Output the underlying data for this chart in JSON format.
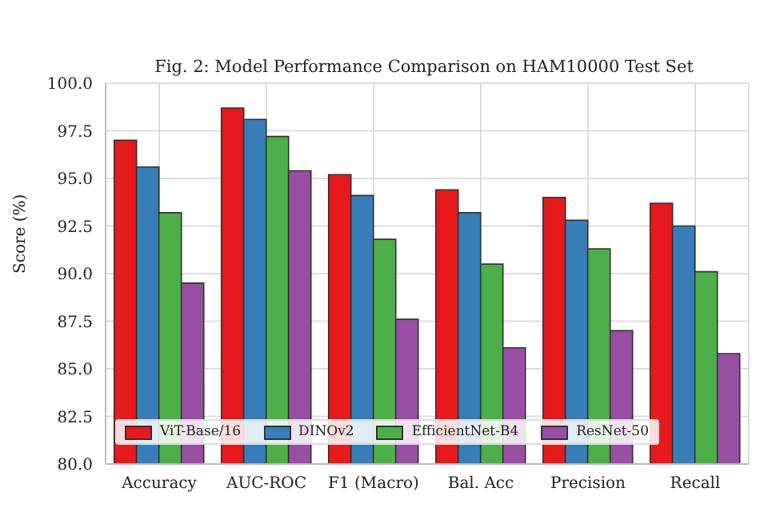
{
  "chart_data": {
    "type": "bar",
    "title": "Fig. 2: Model Performance Comparison on HAM10000 Test Set",
    "ylabel": "Score (%)",
    "categories": [
      "Accuracy",
      "AUC-ROC",
      "F1 (Macro)",
      "Bal. Acc",
      "Precision",
      "Recall"
    ],
    "series": [
      {
        "name": "ViT-Base/16",
        "color": "#e41a1c",
        "values": [
          97.0,
          98.7,
          95.2,
          94.4,
          94.0,
          93.7
        ]
      },
      {
        "name": "DINOv2",
        "color": "#377eb8",
        "values": [
          95.6,
          98.1,
          94.1,
          93.2,
          92.8,
          92.5
        ]
      },
      {
        "name": "EfficientNet-B4",
        "color": "#4daf4a",
        "values": [
          93.2,
          97.2,
          91.8,
          90.5,
          91.3,
          90.1
        ]
      },
      {
        "name": "ResNet-50",
        "color": "#984ea3",
        "values": [
          89.5,
          95.4,
          87.6,
          86.1,
          87.0,
          85.8
        ]
      }
    ],
    "ylim": [
      80,
      100
    ],
    "yticks": [
      {
        "value": 80,
        "label": "80.0"
      },
      82.5,
      {
        "value": 85,
        "label": "85.0"
      },
      87.5,
      {
        "value": 90,
        "label": "90.0"
      },
      92.5,
      {
        "value": 95,
        "label": "95.0"
      },
      97.5,
      {
        "value": 100,
        "label": "100.0"
      }
    ],
    "grid": true,
    "legend": "bottom"
  }
}
